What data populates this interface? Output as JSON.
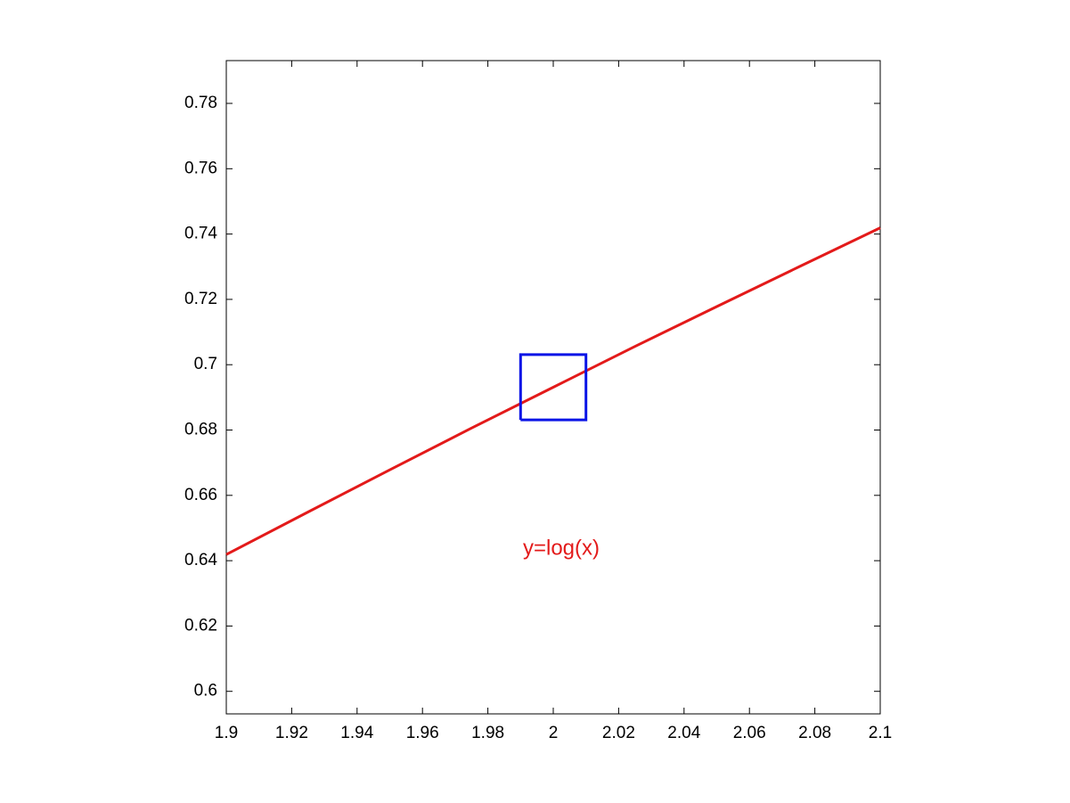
{
  "chart_data": {
    "type": "line",
    "series": [
      {
        "color": "#e31a1a",
        "width": 3,
        "x": [
          1.9,
          1.925,
          1.95,
          1.975,
          2.0,
          2.025,
          2.05,
          2.075,
          2.1
        ],
        "values": [
          0.6419,
          0.6549,
          0.6678,
          0.6806,
          0.6931,
          0.7056,
          0.7178,
          0.7299,
          0.7419
        ]
      },
      {
        "color": "#0a14e6",
        "width": 3,
        "x": [
          1.99,
          2.01,
          2.01,
          1.99,
          1.99
        ],
        "values": [
          0.6831,
          0.6831,
          0.7031,
          0.7031,
          0.6831
        ]
      }
    ],
    "annotation": "y=log(x)",
    "xlim": [
      1.9,
      2.1
    ],
    "xticks": [
      1.9,
      1.92,
      1.94,
      1.96,
      1.98,
      2,
      2.02,
      2.04,
      2.06,
      2.08,
      2.1
    ],
    "ylim": [
      0.5931,
      0.7931
    ],
    "yticks": [
      0.6,
      0.62,
      0.64,
      0.66,
      0.68,
      0.7,
      0.72,
      0.74,
      0.76,
      0.78
    ],
    "grid": false
  }
}
